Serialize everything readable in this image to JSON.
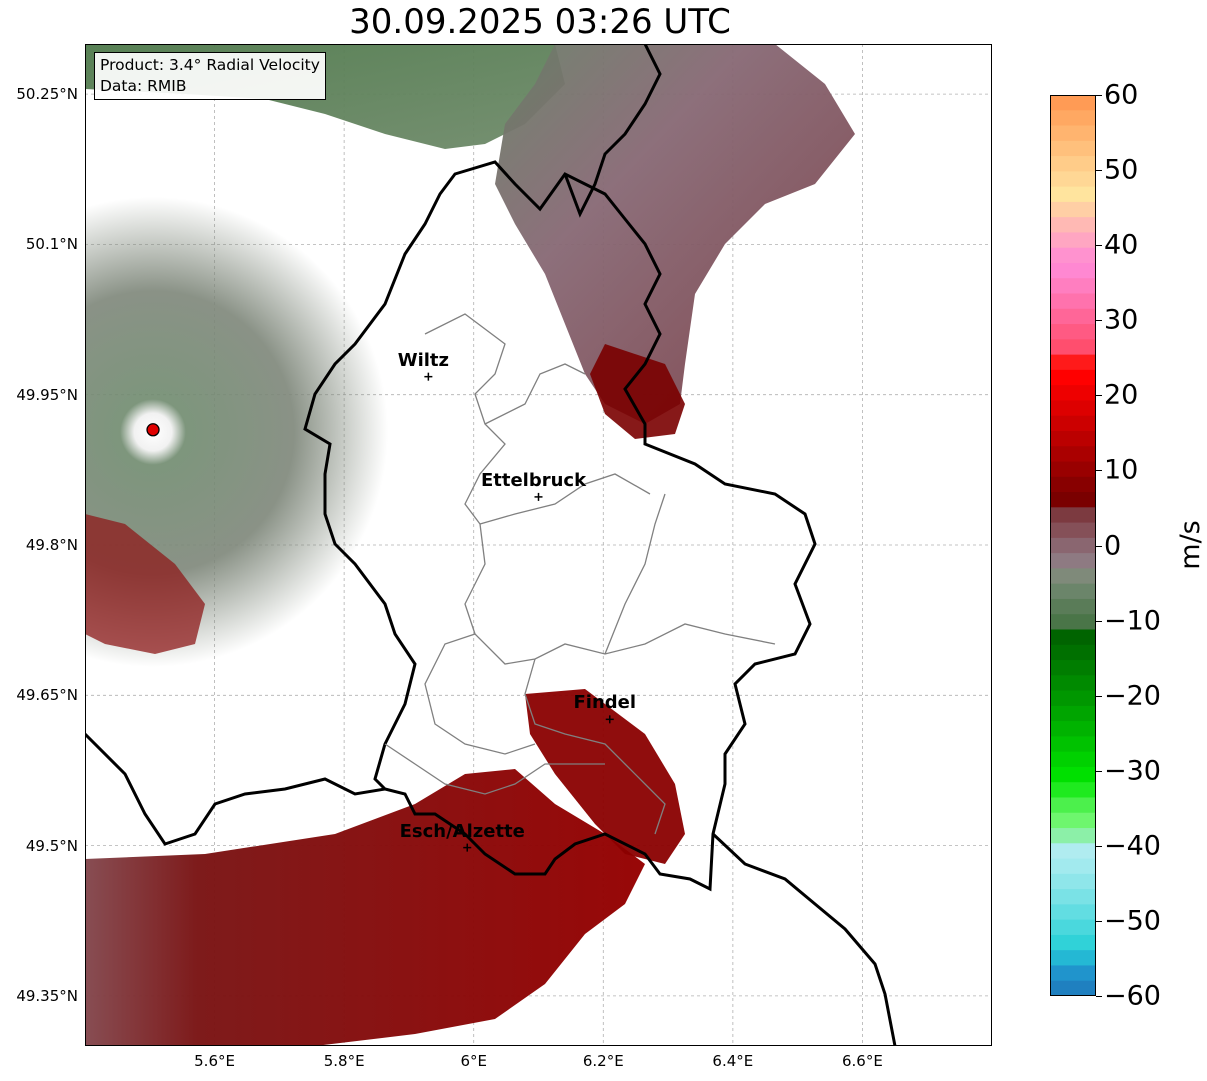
{
  "title": "30.09.2025 03:26 UTC",
  "info_box": {
    "product": "Product: 3.4° Radial Velocity",
    "data": "Data: RMIB"
  },
  "lat_labels": [
    "50.25°N",
    "50.1°N",
    "49.95°N",
    "49.8°N",
    "49.65°N",
    "49.5°N",
    "49.35°N"
  ],
  "lat_values": [
    50.25,
    50.1,
    49.95,
    49.8,
    49.65,
    49.5,
    49.35
  ],
  "lon_labels": [
    "5.6°E",
    "5.8°E",
    "6°E",
    "6.2°E",
    "6.4°E",
    "6.6°E"
  ],
  "lon_values": [
    5.6,
    5.8,
    6.0,
    6.2,
    6.4,
    6.6
  ],
  "extent": {
    "lon_min": 5.4,
    "lon_max": 6.8,
    "lat_min": 49.3,
    "lat_max": 50.3
  },
  "cities": [
    {
      "name": "Wiltz",
      "lon": 5.93,
      "lat": 49.968
    },
    {
      "name": "Ettelbruck",
      "lon": 6.1,
      "lat": 49.848
    },
    {
      "name": "Findel",
      "lon": 6.21,
      "lat": 49.626
    },
    {
      "name": "Esch/Alzette",
      "lon": 5.99,
      "lat": 49.498
    }
  ],
  "radar_site": {
    "lon": 5.505,
    "lat": 49.915,
    "color": "#e00000"
  },
  "colorbar": {
    "unit": "m/s",
    "min": -60,
    "max": 60,
    "ticks": [
      "60",
      "50",
      "40",
      "30",
      "20",
      "10",
      "0",
      "−10",
      "−20",
      "−30",
      "−40",
      "−50",
      "−60"
    ],
    "tick_values": [
      60,
      50,
      40,
      30,
      20,
      10,
      0,
      -10,
      -20,
      -30,
      -40,
      -50,
      -60
    ],
    "colors_top_to_bottom": [
      "#ff9b55",
      "#ffa862",
      "#ffb46f",
      "#ffc07c",
      "#ffcc89",
      "#ffd795",
      "#ffe49e",
      "#ffcfa5",
      "#ffb9b4",
      "#ffa6c2",
      "#ff92cf",
      "#ff88d2",
      "#ff7ec0",
      "#ff72ad",
      "#ff6698",
      "#ff5a83",
      "#ff4e6e",
      "#ff1a1a",
      "#ff0000",
      "#ee0000",
      "#dd0000",
      "#cc0000",
      "#bb0000",
      "#aa0000",
      "#990000",
      "#880000",
      "#7a0000",
      "#7c3a40",
      "#855058",
      "#8a6670",
      "#8e7a82",
      "#7f8a7a",
      "#6b856a",
      "#5a7c58",
      "#4a7548",
      "#006400",
      "#007000",
      "#007d00",
      "#008a00",
      "#009700",
      "#00a500",
      "#00b300",
      "#00c200",
      "#00d100",
      "#00e000",
      "#1fea1f",
      "#4cf04c",
      "#6ef66e",
      "#8cf0a8",
      "#b0ecf0",
      "#a2eaee",
      "#8fe6ea",
      "#7ae2e6",
      "#62dde2",
      "#4ad8dd",
      "#30d2d8",
      "#24b8d4",
      "#2094cc",
      "#1f80c0"
    ]
  }
}
